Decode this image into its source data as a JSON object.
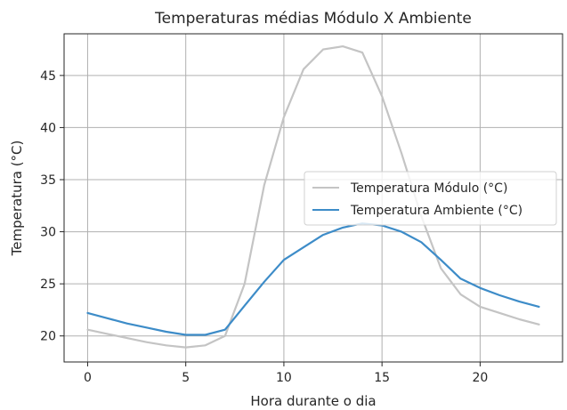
{
  "chart_data": {
    "type": "line",
    "title": "Temperaturas médias Módulo X Ambiente",
    "xlabel": "Hora durante o dia",
    "ylabel": "Temperatura (°C)",
    "xlim": [
      -1.2,
      24.2
    ],
    "ylim": [
      17.5,
      49.0
    ],
    "xticks": [
      0,
      5,
      10,
      15,
      20
    ],
    "yticks": [
      20,
      25,
      30,
      35,
      40,
      45
    ],
    "grid": true,
    "legend_position": "center-right",
    "x": [
      0,
      1,
      2,
      3,
      4,
      5,
      6,
      7,
      8,
      9,
      10,
      11,
      12,
      13,
      14,
      15,
      16,
      17,
      18,
      19,
      20,
      21,
      22,
      23
    ],
    "series": [
      {
        "name": "Temperatura Módulo (°C)",
        "color": "#c4c4c4",
        "values": [
          20.6,
          20.2,
          19.8,
          19.4,
          19.1,
          18.9,
          19.1,
          20.0,
          25.0,
          34.5,
          41.0,
          45.6,
          47.5,
          47.8,
          47.2,
          43.0,
          37.5,
          31.5,
          26.5,
          24.0,
          22.8,
          22.2,
          21.6,
          21.1
        ]
      },
      {
        "name": "Temperatura Ambiente (°C)",
        "color": "#3d8cc8",
        "values": [
          22.2,
          21.7,
          21.2,
          20.8,
          20.4,
          20.1,
          20.1,
          20.6,
          22.9,
          25.2,
          27.3,
          28.5,
          29.7,
          30.4,
          30.8,
          30.6,
          30.0,
          29.0,
          27.3,
          25.5,
          24.6,
          23.9,
          23.3,
          22.8
        ]
      }
    ]
  }
}
